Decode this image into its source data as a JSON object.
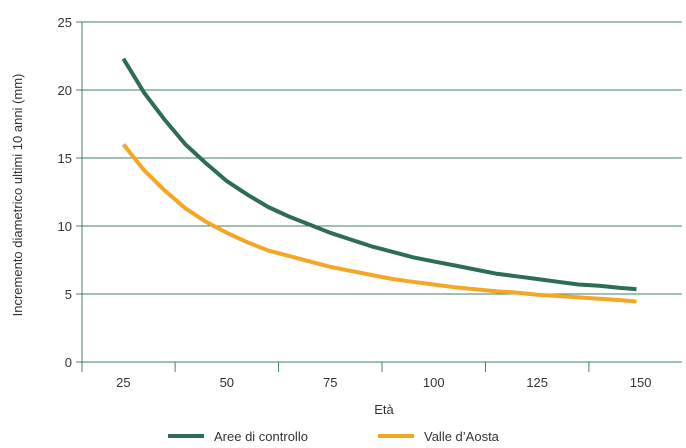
{
  "chart_data": {
    "type": "line",
    "xlabel": "Età",
    "ylabel": "Incremento diametrico ultimi 10 anni (mm)",
    "xlim": [
      15,
      160
    ],
    "ylim": [
      0,
      25
    ],
    "x_ticks": [
      25,
      50,
      75,
      100,
      125,
      150
    ],
    "y_ticks": [
      0,
      5,
      10,
      15,
      20,
      25
    ],
    "grid": "horizontal",
    "legend_position": "bottom",
    "series": [
      {
        "name": "Aree di controllo",
        "color": "#2e6b5a",
        "points": [
          [
            25,
            22.3
          ],
          [
            30,
            19.8
          ],
          [
            35,
            17.8
          ],
          [
            40,
            16.0
          ],
          [
            45,
            14.6
          ],
          [
            50,
            13.3
          ],
          [
            55,
            12.3
          ],
          [
            60,
            11.4
          ],
          [
            65,
            10.7
          ],
          [
            70,
            10.1
          ],
          [
            75,
            9.5
          ],
          [
            80,
            9.0
          ],
          [
            85,
            8.5
          ],
          [
            90,
            8.1
          ],
          [
            95,
            7.7
          ],
          [
            100,
            7.4
          ],
          [
            105,
            7.1
          ],
          [
            110,
            6.8
          ],
          [
            115,
            6.5
          ],
          [
            120,
            6.3
          ],
          [
            125,
            6.1
          ],
          [
            130,
            5.9
          ],
          [
            135,
            5.7
          ],
          [
            140,
            5.6
          ],
          [
            145,
            5.45
          ],
          [
            149,
            5.35
          ]
        ]
      },
      {
        "name": "Valle d’Aosta",
        "color": "#f5a623",
        "points": [
          [
            25,
            16.0
          ],
          [
            30,
            14.1
          ],
          [
            35,
            12.6
          ],
          [
            40,
            11.3
          ],
          [
            45,
            10.3
          ],
          [
            50,
            9.5
          ],
          [
            55,
            8.8
          ],
          [
            60,
            8.2
          ],
          [
            65,
            7.8
          ],
          [
            70,
            7.4
          ],
          [
            75,
            7.0
          ],
          [
            80,
            6.7
          ],
          [
            85,
            6.4
          ],
          [
            90,
            6.1
          ],
          [
            95,
            5.9
          ],
          [
            100,
            5.7
          ],
          [
            105,
            5.5
          ],
          [
            110,
            5.35
          ],
          [
            115,
            5.2
          ],
          [
            120,
            5.1
          ],
          [
            125,
            4.95
          ],
          [
            130,
            4.85
          ],
          [
            135,
            4.75
          ],
          [
            140,
            4.65
          ],
          [
            145,
            4.55
          ],
          [
            149,
            4.45
          ]
        ]
      }
    ]
  }
}
